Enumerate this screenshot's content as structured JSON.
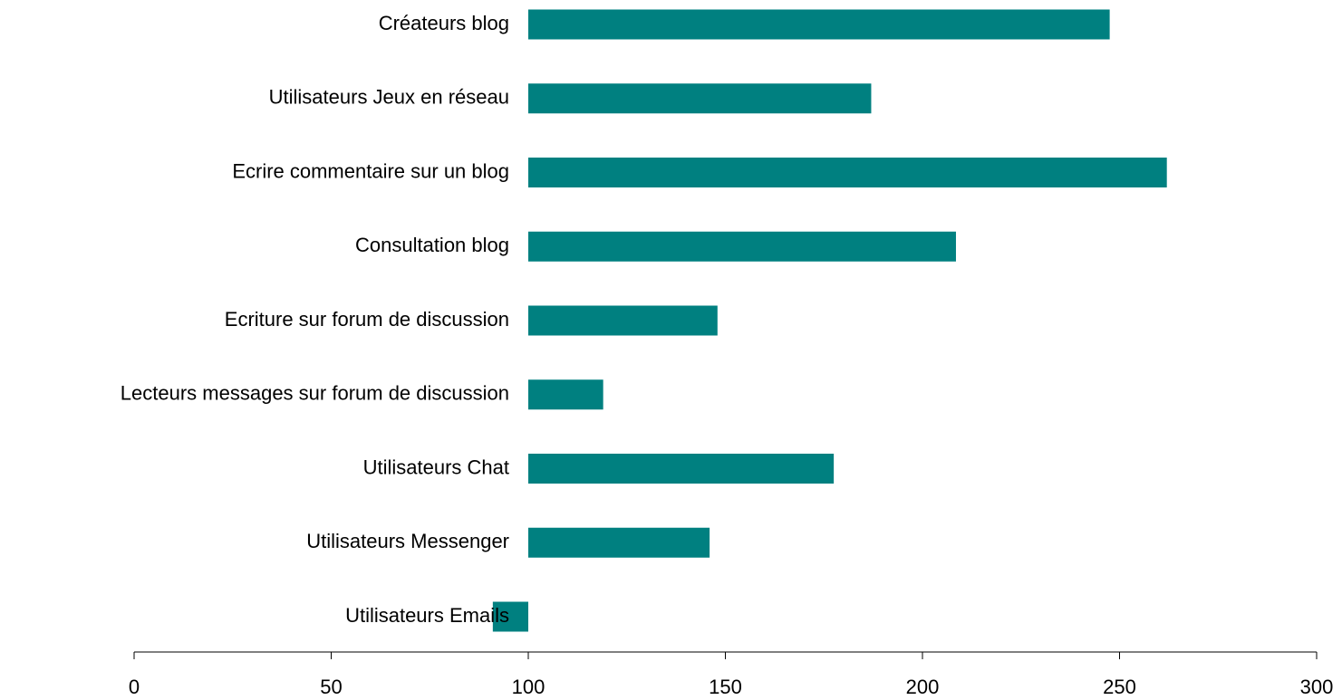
{
  "chart_data": {
    "type": "hbar",
    "categories": [
      "Créateurs blog",
      "Utilisateurs Jeux en réseau",
      "Ecrire commentaire sur un blog",
      "Consultation blog",
      "Ecriture sur forum de discussion",
      "Lecteurs messages sur forum de discussion",
      "Utilisateurs Chat",
      "Utilisateurs Messenger",
      "Utilisateurs Emails"
    ],
    "values": [
      247.5,
      187,
      262,
      208.5,
      148,
      119,
      177.5,
      146,
      91
    ],
    "base": 100,
    "color": "#008080",
    "xlim": [
      0,
      300
    ],
    "xticks": [
      0,
      50,
      100,
      150,
      200,
      250,
      300
    ]
  }
}
